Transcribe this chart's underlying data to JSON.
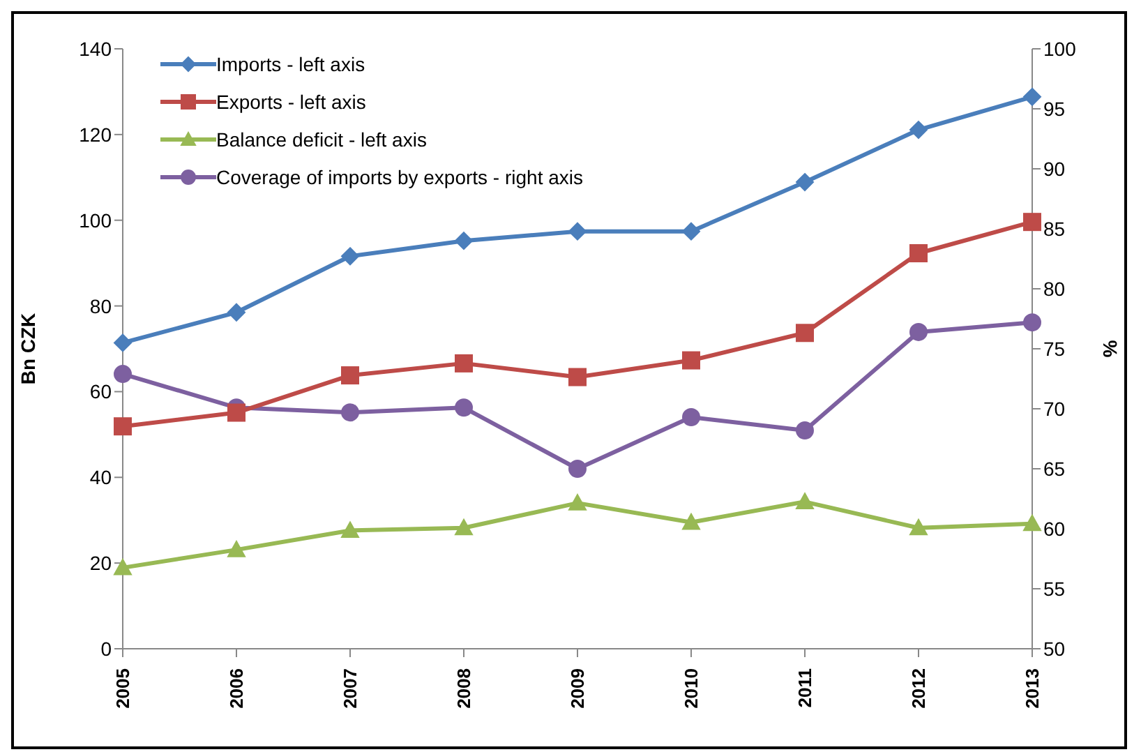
{
  "chart_data": {
    "type": "line",
    "ylabel": "Bn CZK",
    "y2label": "%",
    "categories": [
      "2005",
      "2006",
      "2007",
      "2008",
      "2009",
      "2010",
      "2011",
      "2012",
      "2013"
    ],
    "series": [
      {
        "name": "Imports - left axis",
        "color": "#4a7ebb",
        "marker": "diamond",
        "values": [
          71.4,
          78.5,
          91.6,
          95.2,
          97.4,
          97.4,
          108.9,
          121.1,
          128.8
        ]
      },
      {
        "name": "Exports - left axis",
        "color": "#be4b48",
        "marker": "square",
        "values": [
          51.9,
          55.1,
          63.8,
          66.6,
          63.4,
          67.3,
          73.7,
          92.3,
          99.6
        ]
      },
      {
        "name": "Balance deficit - left axis",
        "color": "#98b954",
        "marker": "triangle",
        "values": [
          18.9,
          23.1,
          27.6,
          28.2,
          34.0,
          29.5,
          34.3,
          28.2,
          29.2
        ]
      },
      {
        "name": "Coverage of imports by exports - right axis",
        "color": "#7d60a0",
        "marker": "circle",
        "axis": "y2",
        "values": [
          72.9,
          70.1,
          69.7,
          70.1,
          65.0,
          69.3,
          68.2,
          76.4,
          77.2
        ]
      }
    ],
    "ylim": [
      0,
      140
    ],
    "yticks": [
      0,
      20,
      40,
      60,
      80,
      100,
      120,
      140
    ],
    "y2lim": [
      50,
      100
    ],
    "y2ticks": [
      50,
      55,
      60,
      65,
      70,
      75,
      80,
      85,
      90,
      95,
      100
    ],
    "grid": false,
    "legend": "top left"
  }
}
